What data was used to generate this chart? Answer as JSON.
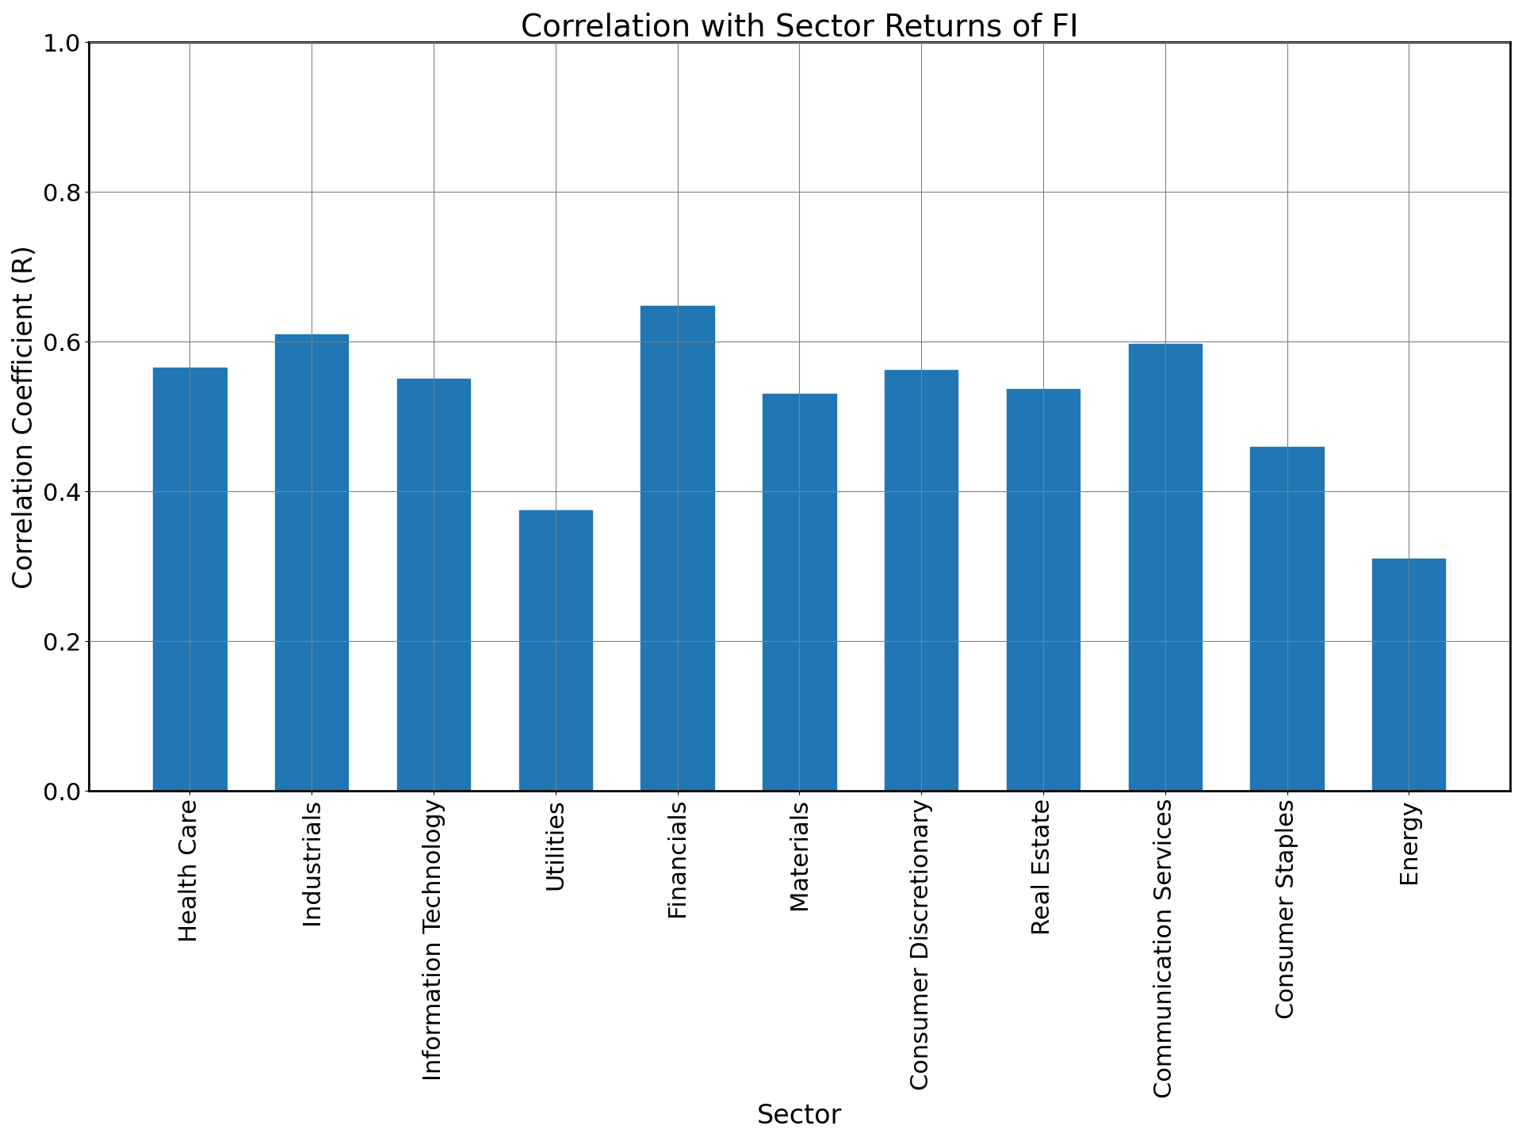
{
  "title": "Correlation with Sector Returns of FI",
  "xlabel": "Sector",
  "ylabel": "Correlation Coefficient (R)",
  "categories": [
    "Health Care",
    "Industrials",
    "Information Technology",
    "Utilities",
    "Financials",
    "Materials",
    "Consumer Discretionary",
    "Real Estate",
    "Communication Services",
    "Consumer Staples",
    "Energy"
  ],
  "values": [
    0.565,
    0.61,
    0.55,
    0.375,
    0.648,
    0.53,
    0.562,
    0.537,
    0.597,
    0.46,
    0.31
  ],
  "bar_color": "#2077b4",
  "ylim": [
    0.0,
    1.0
  ],
  "yticks": [
    0.0,
    0.2,
    0.4,
    0.6,
    0.8,
    1.0
  ],
  "title_fontsize": 28,
  "label_fontsize": 24,
  "tick_fontsize": 22,
  "bar_width": 0.6
}
